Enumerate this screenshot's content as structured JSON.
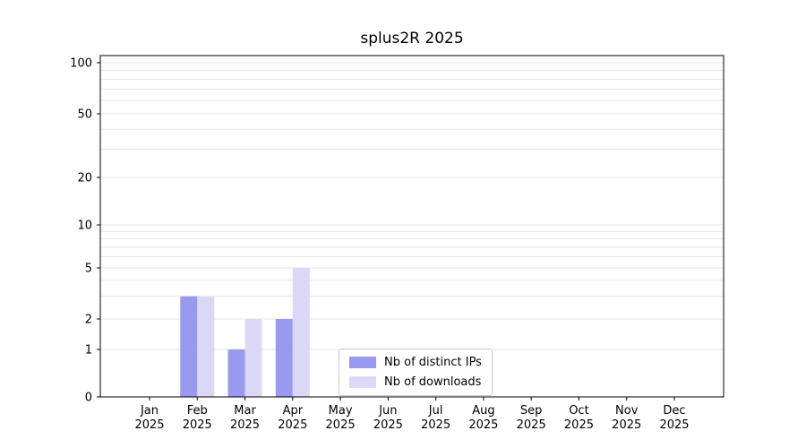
{
  "title": "splus2R 2025",
  "chart_data": {
    "type": "bar",
    "title": "splus2R 2025",
    "x_categories_months": [
      "Jan",
      "Feb",
      "Mar",
      "Apr",
      "May",
      "Jun",
      "Jul",
      "Aug",
      "Sep",
      "Oct",
      "Nov",
      "Dec"
    ],
    "x_year_label": "2025",
    "series": [
      {
        "name": "Nb of distinct IPs",
        "color": "#9999ee",
        "values": [
          0,
          3,
          1,
          2,
          0,
          0,
          0,
          0,
          0,
          0,
          0,
          0
        ]
      },
      {
        "name": "Nb of downloads",
        "color": "#d9d9f7",
        "values": [
          0,
          3,
          2,
          5,
          0,
          0,
          0,
          0,
          0,
          0,
          0,
          0
        ]
      }
    ],
    "yticks": [
      0,
      1,
      2,
      5,
      10,
      20,
      50,
      100
    ],
    "yscale": "log-like (0,1,2,5,10,20,50,100)",
    "ylim": [
      0,
      100
    ],
    "xlabel": "",
    "ylabel": "",
    "grid": true,
    "legend_position": "inside plot, lower center"
  }
}
